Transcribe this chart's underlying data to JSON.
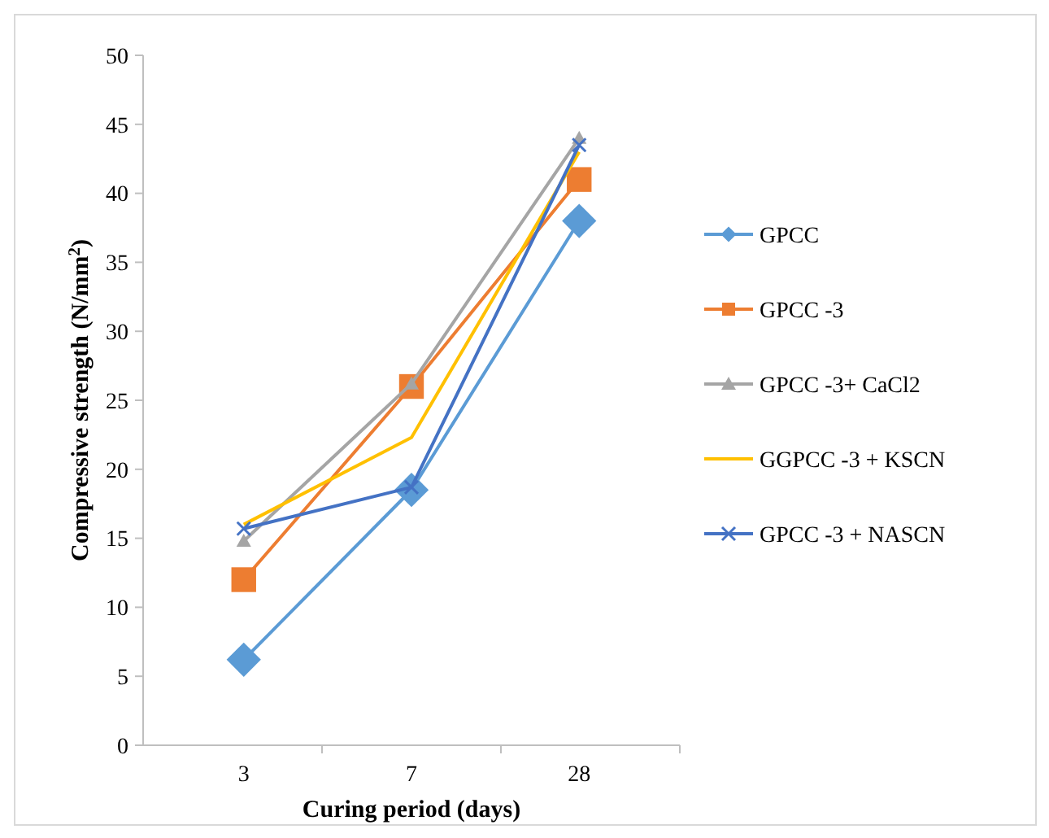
{
  "chart_data": {
    "type": "line",
    "xlabel": "Curing period (days)",
    "ylabel": "Compressive strength (N/mm$^{2}$)",
    "categories": [
      "3",
      "7",
      "28"
    ],
    "ylim": [
      0,
      50
    ],
    "yticks": [
      0,
      5,
      10,
      15,
      20,
      25,
      30,
      35,
      40,
      45,
      50
    ],
    "legend": "right",
    "grid": false,
    "series": [
      {
        "name": "GPCC",
        "color": "#5b9bd5",
        "values": [
          6.2,
          18.5,
          38
        ],
        "marker": "diamond"
      },
      {
        "name": "GPCC -3",
        "color": "#ed7d31",
        "values": [
          12,
          26,
          41
        ],
        "marker": "square"
      },
      {
        "name": "GPCC -3+ CaCl2",
        "color": "#a5a5a5",
        "values": [
          14.8,
          26.2,
          44
        ],
        "marker": "triangle"
      },
      {
        "name": "GGPCC -3 + KSCN",
        "color": "#ffc000",
        "values": [
          16,
          22.3,
          43
        ],
        "marker": "none"
      },
      {
        "name": "GPCC -3 + NASCN",
        "color": "#4472c4",
        "values": [
          15.7,
          18.7,
          43.5
        ],
        "marker": "cross"
      }
    ]
  }
}
